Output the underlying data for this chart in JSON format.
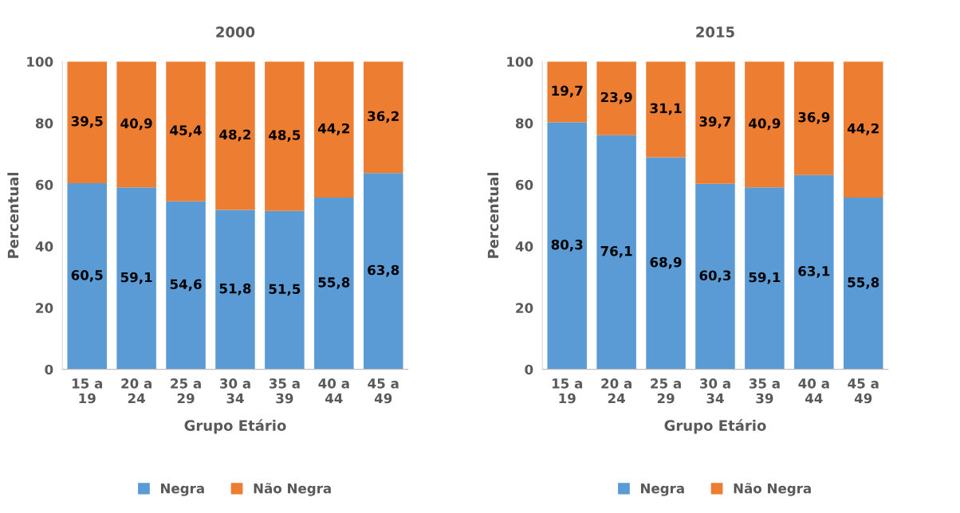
{
  "chart_data": [
    {
      "type": "bar",
      "title": "2000",
      "xlabel": "Grupo Etário",
      "ylabel": "Percentual",
      "stacked": true,
      "categories": [
        "15 a\n19",
        "20 a\n24",
        "25 a\n29",
        "30 a\n34",
        "35 a\n39",
        "40 a\n44",
        "45 a\n49"
      ],
      "series": [
        {
          "name": "Negra",
          "color": "#5b9bd5",
          "values": [
            60.5,
            59.1,
            54.6,
            51.8,
            51.5,
            55.8,
            63.8
          ],
          "value_labels": [
            "60,5",
            "59,1",
            "54,6",
            "51,8",
            "51,5",
            "55,8",
            "63,8"
          ]
        },
        {
          "name": "Não Negra",
          "color": "#ed7d31",
          "values": [
            39.5,
            40.9,
            45.4,
            48.2,
            48.5,
            44.2,
            36.2
          ],
          "value_labels": [
            "39,5",
            "40,9",
            "45,4",
            "48,2",
            "48,5",
            "44,2",
            "36,2"
          ]
        }
      ],
      "ylim": [
        0,
        100
      ],
      "yticks": [
        0,
        20,
        40,
        60,
        80,
        100
      ],
      "grid": false,
      "legend": "bottom"
    },
    {
      "type": "bar",
      "title": "2015",
      "xlabel": "Grupo Etário",
      "ylabel": "Percentual",
      "stacked": true,
      "categories": [
        "15 a\n19",
        "20 a\n24",
        "25 a\n29",
        "30 a\n34",
        "35 a\n39",
        "40 a\n44",
        "45 a\n49"
      ],
      "series": [
        {
          "name": "Negra",
          "color": "#5b9bd5",
          "values": [
            80.3,
            76.1,
            68.9,
            60.3,
            59.1,
            63.1,
            55.8
          ],
          "value_labels": [
            "80,3",
            "76,1",
            "68,9",
            "60,3",
            "59,1",
            "63,1",
            "55,8"
          ]
        },
        {
          "name": "Não Negra",
          "color": "#ed7d31",
          "values": [
            19.7,
            23.9,
            31.1,
            39.7,
            40.9,
            36.9,
            44.2
          ],
          "value_labels": [
            "19,7",
            "23,9",
            "31,1",
            "39,7",
            "40,9",
            "36,9",
            "44,2"
          ]
        }
      ],
      "ylim": [
        0,
        100
      ],
      "yticks": [
        0,
        20,
        40,
        60,
        80,
        100
      ],
      "grid": false,
      "legend": "bottom"
    }
  ]
}
